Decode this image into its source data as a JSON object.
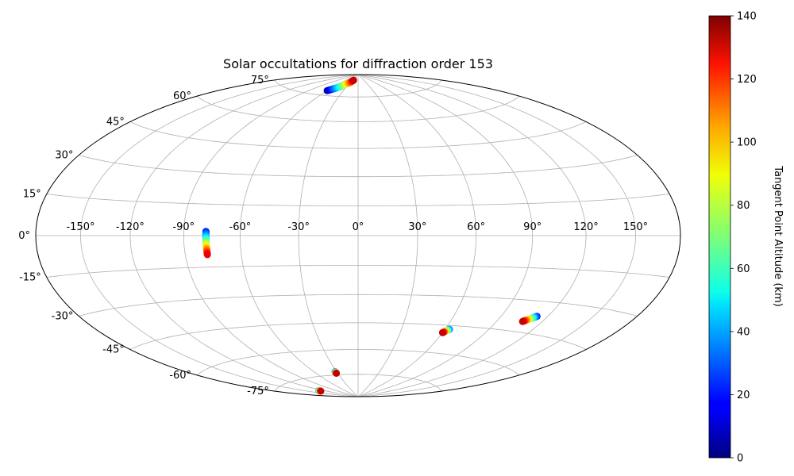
{
  "chart_data": {
    "type": "scatter",
    "projection": "hammer",
    "title": "Solar occultations for diffraction order 153",
    "grid": true,
    "lon_ticks": [
      -150,
      -120,
      -90,
      -60,
      -30,
      0,
      30,
      60,
      90,
      120,
      150
    ],
    "lat_ticks": [
      75,
      60,
      45,
      30,
      15,
      0,
      -15,
      -30,
      -45,
      -60,
      -75
    ],
    "lon_tick_labels": [
      "-150°",
      "-120°",
      "-90°",
      "-60°",
      "-30°",
      "0°",
      "30°",
      "60°",
      "90°",
      "120°",
      "150°"
    ],
    "lat_tick_labels": [
      "75°",
      "60°",
      "45°",
      "30°",
      "15°",
      "0°",
      "-15°",
      "-30°",
      "-45°",
      "-60°",
      "-75°"
    ],
    "colorbar": {
      "label": "Tangent Point Altitude (km)",
      "colormap": "jet",
      "range": [
        0,
        140
      ],
      "ticks": [
        0,
        20,
        40,
        60,
        80,
        100,
        120,
        140
      ],
      "tick_labels": [
        "0",
        "20",
        "40",
        "60",
        "80",
        "100",
        "120",
        "140"
      ]
    },
    "series": [
      {
        "lon_start": -78,
        "lat_start": 2,
        "lon_end": -78,
        "lat_end": -9,
        "alt_start": 20,
        "alt_end": 125,
        "points": 40
      },
      {
        "lon_start": -60,
        "lat_start": 78,
        "lon_end": -24,
        "lat_end": 86,
        "alt_start": 5,
        "alt_end": 130,
        "points": 40
      },
      {
        "lon_start": 63,
        "lat_start": -47,
        "lon_end": 60,
        "lat_end": -49,
        "alt_start": 30,
        "alt_end": 130,
        "points": 20
      },
      {
        "lon_start": 113,
        "lat_start": -37,
        "lon_end": 107,
        "lat_end": -40,
        "alt_start": 20,
        "alt_end": 130,
        "points": 25
      },
      {
        "lon_start": -32,
        "lat_start": -73,
        "lon_end": -32,
        "lat_end": -74,
        "alt_start": 30,
        "alt_end": 130,
        "points": 6
      },
      {
        "lon_start": -129,
        "lat_start": -82,
        "lon_end": -131,
        "lat_end": -82.5,
        "alt_start": 40,
        "alt_end": 130,
        "points": 6
      }
    ]
  }
}
